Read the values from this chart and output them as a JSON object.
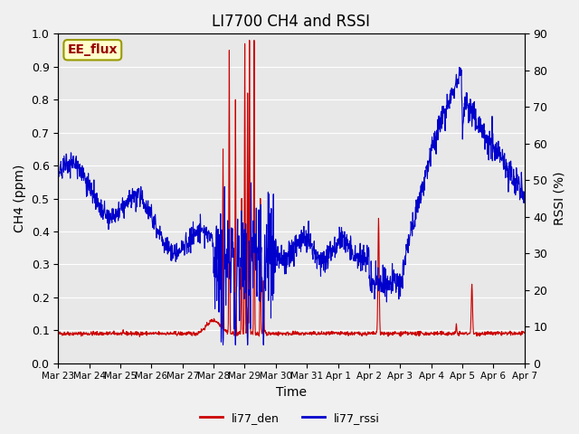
{
  "title": "LI7700 CH4 and RSSI",
  "xlabel": "Time",
  "ylabel_left": "CH4 (ppm)",
  "ylabel_right": "RSSI (%)",
  "annotation": "EE_flux",
  "ylim_left": [
    0.0,
    1.0
  ],
  "ylim_right": [
    0,
    90
  ],
  "yticks_left": [
    0.0,
    0.1,
    0.2,
    0.3,
    0.4,
    0.5,
    0.6,
    0.7,
    0.8,
    0.9,
    1.0
  ],
  "yticks_right": [
    0,
    10,
    20,
    30,
    40,
    50,
    60,
    70,
    80,
    90
  ],
  "xtick_labels": [
    "Mar 23",
    "Mar 24",
    "Mar 25",
    "Mar 26",
    "Mar 27",
    "Mar 28",
    "Mar 29",
    "Mar 30",
    "Mar 31",
    "Apr 1",
    "Apr 2",
    "Apr 3",
    "Apr 4",
    "Apr 5",
    "Apr 6",
    "Apr 7"
  ],
  "color_den": "#cc0000",
  "color_rssi": "#0000cc",
  "bg_color": "#e8e8e8",
  "legend_labels": [
    "li77_den",
    "li77_rssi"
  ],
  "title_fontsize": 12
}
